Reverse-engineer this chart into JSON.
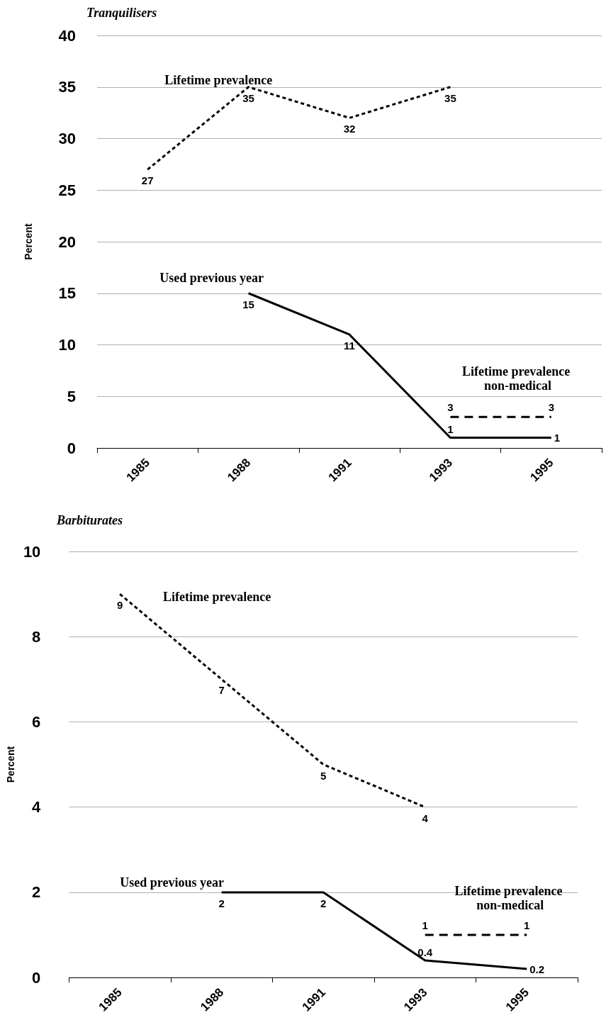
{
  "chart_data": [
    {
      "type": "line",
      "title": "Tranquilisers",
      "ylabel": "Percent",
      "categories": [
        "1985",
        "1988",
        "1991",
        "1993",
        "1995"
      ],
      "ylim": [
        0,
        40
      ],
      "yticks": [
        0,
        5,
        10,
        15,
        20,
        25,
        30,
        35,
        40
      ],
      "grid": "y",
      "legend": false,
      "marker": "none",
      "data_labels": true,
      "series": [
        {
          "name": "Lifetime prevalence",
          "color": "#000000",
          "line_style": "dotted",
          "values": [
            27,
            35,
            32,
            35,
            null
          ]
        },
        {
          "name": "Used previous year",
          "color": "#000000",
          "line_style": "solid",
          "values": [
            null,
            15,
            11,
            1,
            1
          ]
        },
        {
          "name": "Lifetime prevalence non-medical",
          "color": "#000000",
          "line_style": "dashed",
          "values": [
            null,
            null,
            null,
            3,
            3
          ]
        }
      ]
    },
    {
      "type": "line",
      "title": "Barbiturates",
      "ylabel": "Percent",
      "categories": [
        "1985",
        "1988",
        "1991",
        "1993",
        "1995"
      ],
      "ylim": [
        0,
        10
      ],
      "yticks": [
        0,
        2,
        4,
        6,
        8,
        10
      ],
      "grid": "y",
      "legend": false,
      "marker": "none",
      "data_labels": true,
      "series": [
        {
          "name": "Lifetime prevalence",
          "color": "#000000",
          "line_style": "dotted",
          "values": [
            9,
            7,
            5,
            4,
            null
          ]
        },
        {
          "name": "Used previous year",
          "color": "#000000",
          "line_style": "solid",
          "values": [
            null,
            2,
            2,
            0.4,
            0.2
          ]
        },
        {
          "name": "Lifetime prevalence non-medical",
          "color": "#000000",
          "line_style": "dashed",
          "values": [
            null,
            null,
            null,
            1,
            1
          ]
        }
      ]
    }
  ]
}
